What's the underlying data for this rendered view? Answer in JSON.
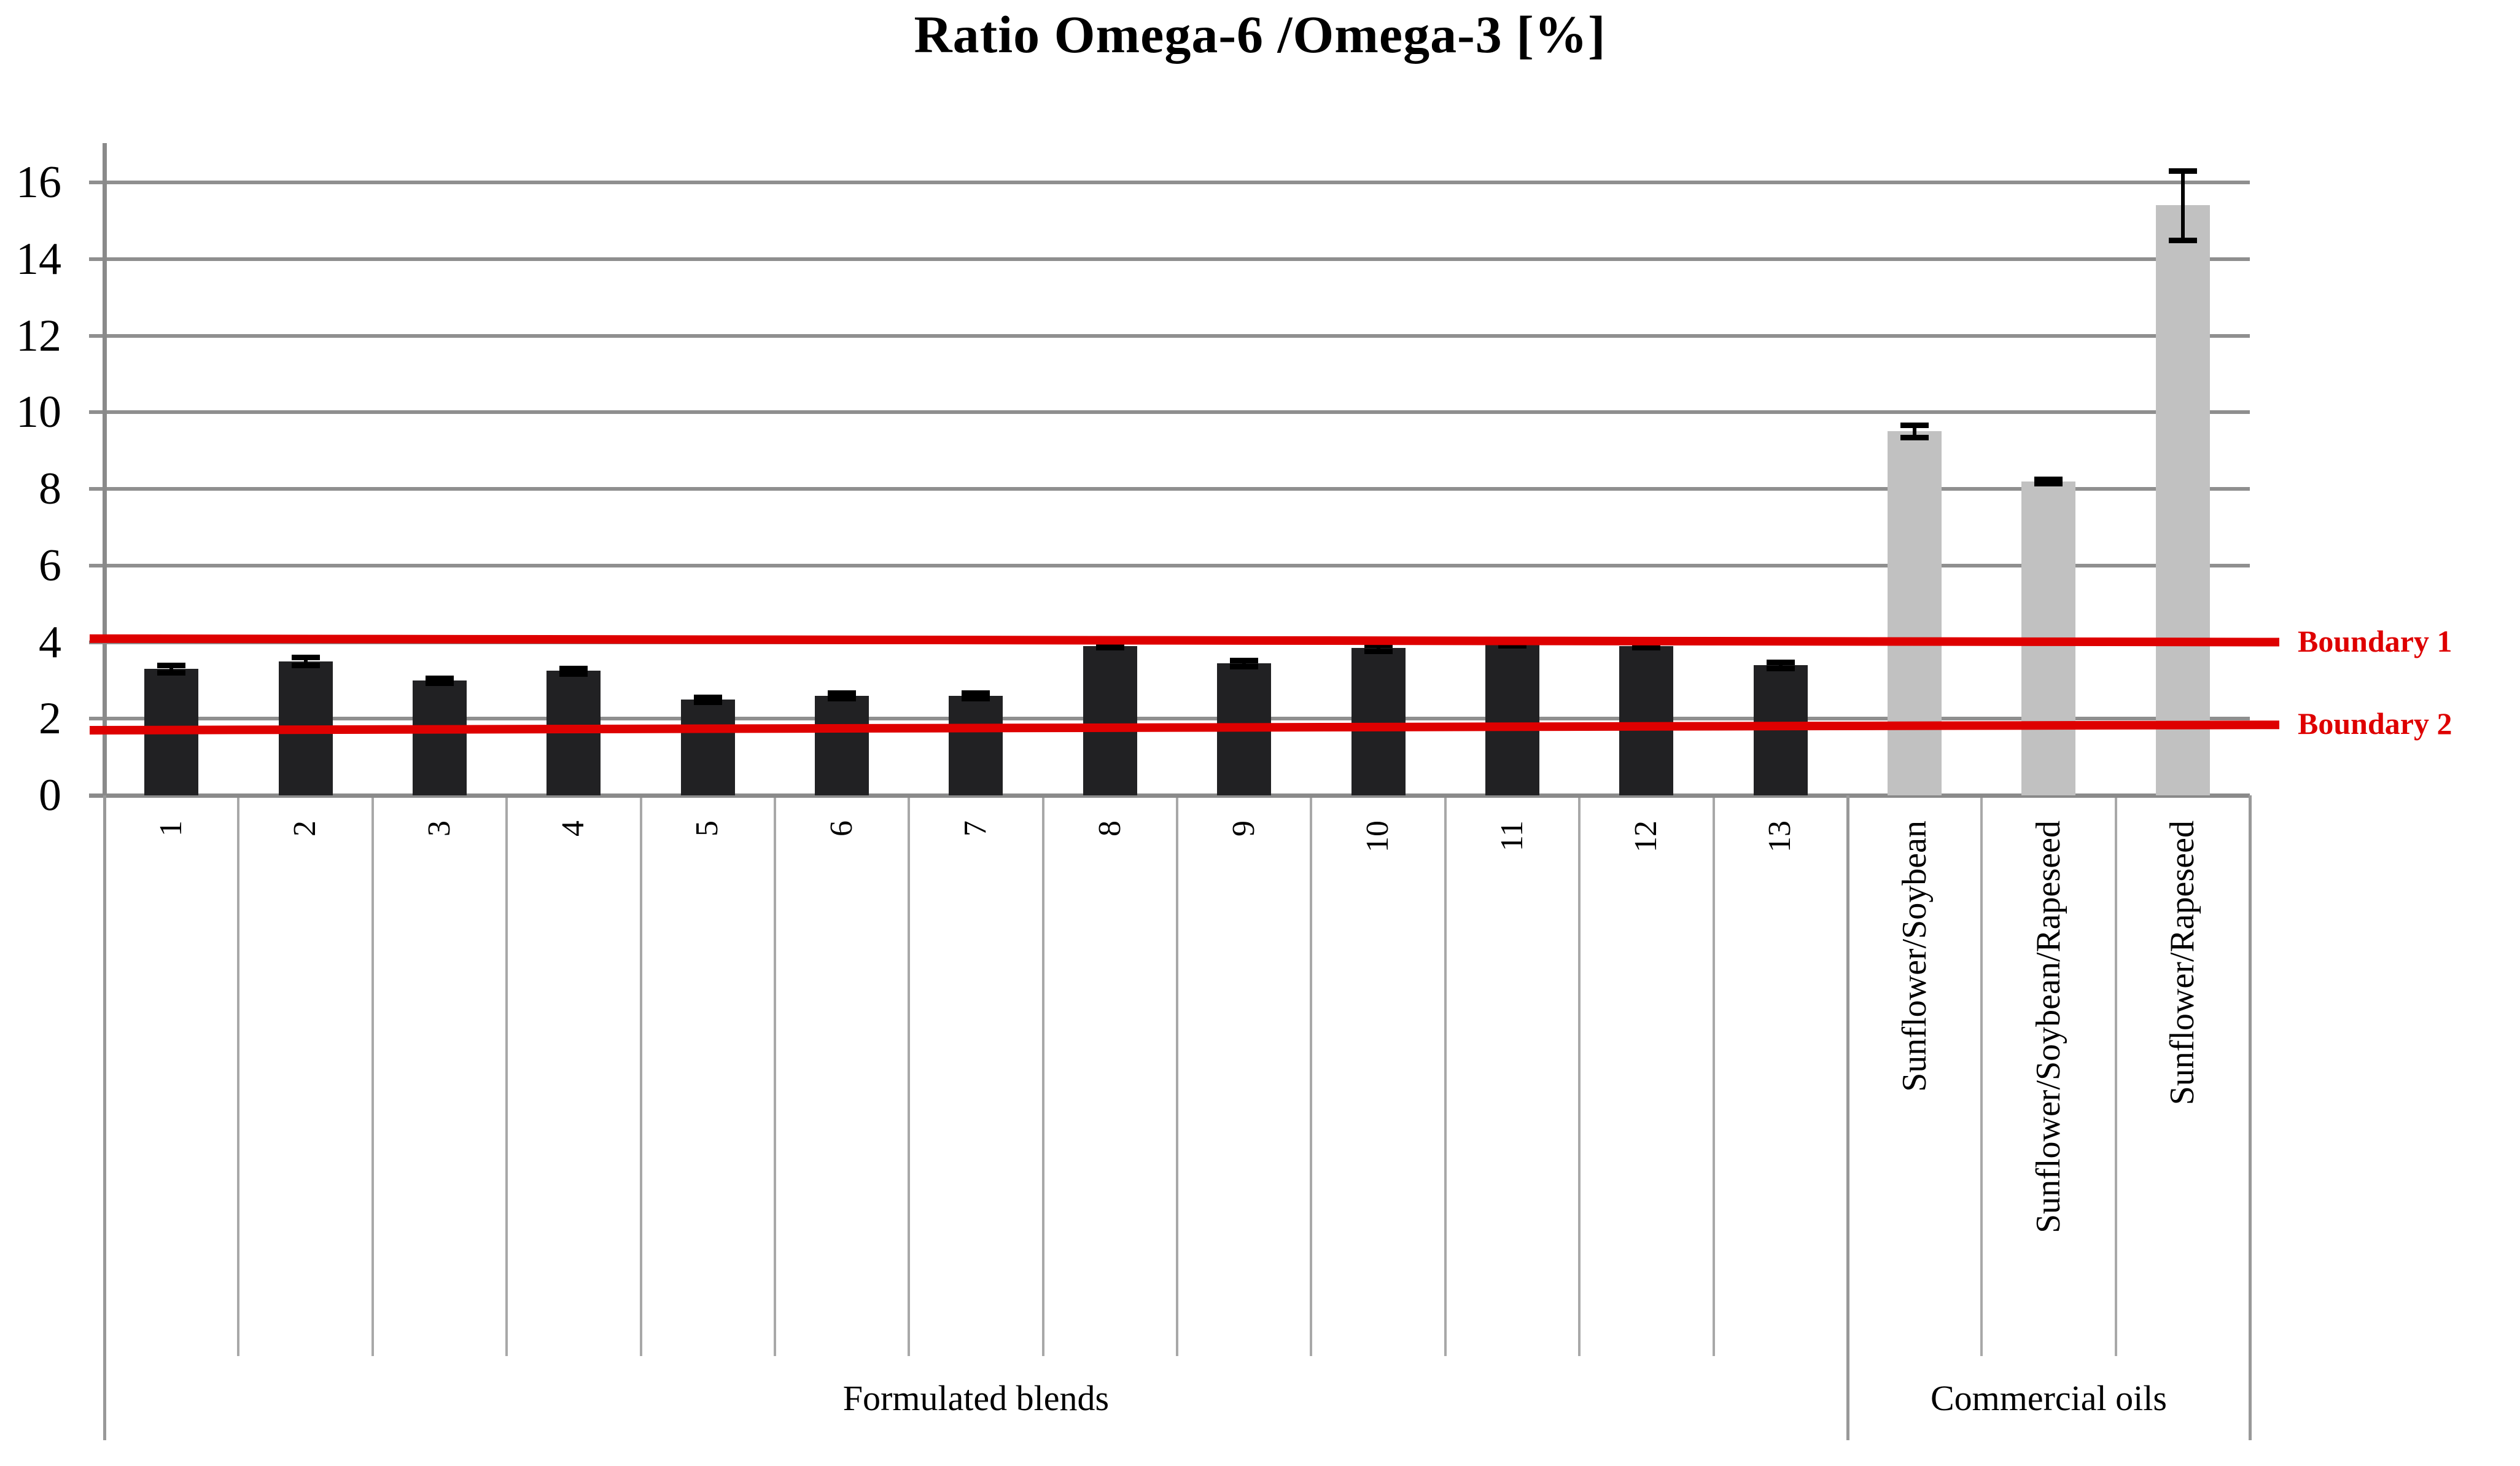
{
  "title": "Ratio Omega-6 /Omega-3 [%]",
  "colors": {
    "accent_red": "#de0000",
    "bar_dark": "#212123",
    "bar_gray": "#c1c1c1",
    "grid_gray": "#8f8f8f",
    "separator_gray": "#a8a8a8",
    "text_black": "#000000"
  },
  "chart_data": {
    "type": "bar",
    "title": "Ratio Omega-6 /Omega-3 [%]",
    "categories": [
      "1",
      "2",
      "3",
      "4",
      "5",
      "6",
      "7",
      "8",
      "9",
      "10",
      "11",
      "12",
      "13",
      "Sunflower/Soybean",
      "Sunflower/Soybean/Rapeseed",
      "Sunflower/Rapeseed"
    ],
    "values": [
      3.3,
      3.5,
      3.0,
      3.25,
      2.5,
      2.6,
      2.6,
      3.9,
      3.45,
      3.85,
      3.95,
      3.9,
      3.4,
      9.5,
      8.2,
      15.4
    ],
    "error_bars": [
      0.1,
      0.1,
      0.07,
      0.07,
      0.06,
      0.07,
      0.07,
      0.04,
      0.08,
      0.08,
      0.04,
      0.04,
      0.08,
      0.16,
      0.06,
      0.9
    ],
    "series_groups": [
      {
        "label": "Formulated blends",
        "count": 13,
        "bar_color_key": "bar_dark"
      },
      {
        "label": "Commercial oils",
        "count": 3,
        "bar_color_key": "bar_gray"
      }
    ],
    "xlabel": "",
    "ylabel": "",
    "ylim": [
      0,
      16
    ],
    "ytick_step": 2,
    "yticks": [
      "0",
      "2",
      "4",
      "6",
      "8",
      "10",
      "12",
      "14",
      "16"
    ],
    "grid": "horizontal",
    "legend": "none",
    "ref_lines": [
      {
        "label": "Boundary 1",
        "value": 4.0,
        "value_left": 4.09,
        "value_right": 4.0,
        "color": "#de0000"
      },
      {
        "label": "Boundary 2",
        "value": 1.75,
        "value_left": 1.7,
        "value_right": 1.84,
        "color": "#de0000"
      }
    ]
  }
}
